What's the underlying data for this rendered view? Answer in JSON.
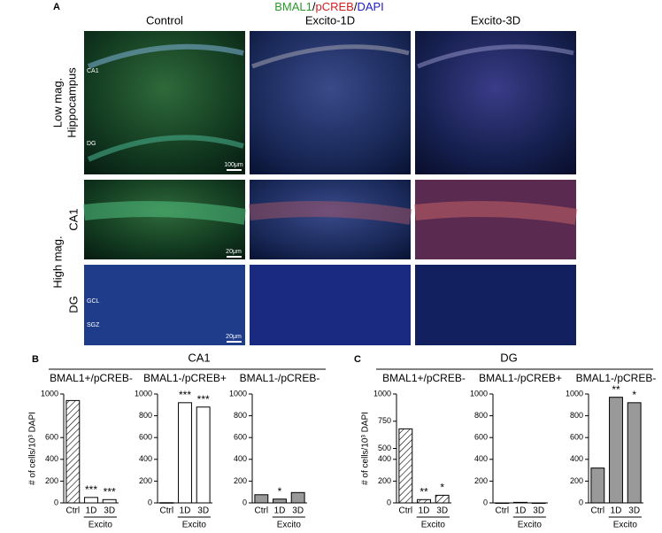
{
  "figure": {
    "panel_a": "A",
    "panel_b": "B",
    "panel_c": "C",
    "stain": [
      "BMAL1",
      "/",
      "pCREB",
      "/",
      "DAPI"
    ],
    "columns": [
      "Control",
      "Excito-1D",
      "Excito-3D"
    ],
    "row_low": [
      "Low mag.",
      "Hippocampus"
    ],
    "row_high": "High mag.",
    "row_ca1": "CA1",
    "row_dg": "DG",
    "inner_low": [
      "CA1",
      "DG"
    ],
    "inner_dg": [
      "GCL",
      "SGZ"
    ],
    "scale_bars": [
      "100μm",
      "20μm",
      "20μm"
    ],
    "group_b": "CA1",
    "group_c": "DG"
  },
  "chart_data": [
    {
      "type": "bar",
      "title": "BMAL1+/pCREB-",
      "y_label": "# of cells/10³ DAPI",
      "categories": [
        "Ctrl",
        "1D",
        "3D"
      ],
      "x_group": "Excito",
      "values": [
        940,
        50,
        30
      ],
      "significance": [
        null,
        "***",
        "***"
      ],
      "color": "#ffffff",
      "hatched": [
        true,
        false,
        false
      ],
      "ylim": [
        0,
        1000
      ],
      "yticks": [
        0,
        200,
        400,
        600,
        1000
      ]
    },
    {
      "type": "bar",
      "title": "BMAL1-/pCREB+",
      "categories": [
        "Ctrl",
        "1D",
        "3D"
      ],
      "x_group": "Excito",
      "values": [
        2,
        920,
        880
      ],
      "significance": [
        null,
        "***",
        "***"
      ],
      "color": "#ffffff",
      "hatched": [
        false,
        false,
        false
      ],
      "ylim": [
        0,
        1000
      ],
      "yticks": [
        0,
        200,
        400,
        600,
        800,
        1000
      ]
    },
    {
      "type": "bar",
      "title": "BMAL1-/pCREB-",
      "categories": [
        "Ctrl",
        "1D",
        "3D"
      ],
      "x_group": "Excito",
      "values": [
        75,
        35,
        95
      ],
      "significance": [
        null,
        "*",
        null
      ],
      "color": "#999999",
      "hatched": [
        false,
        false,
        false
      ],
      "ylim": [
        0,
        1000
      ],
      "yticks": [
        0,
        200,
        400,
        600,
        800,
        1000
      ]
    },
    {
      "type": "bar",
      "title": "BMAL1+/pCREB-",
      "y_label": "# of cells/10³ DAPI",
      "categories": [
        "Ctrl",
        "1D",
        "3D"
      ],
      "x_group": "Excito",
      "values": [
        680,
        30,
        70
      ],
      "significance": [
        null,
        "**",
        "*"
      ],
      "color": "#ffffff",
      "hatched": [
        true,
        true,
        true
      ],
      "ylim": [
        0,
        1000
      ],
      "yticks": [
        0,
        200,
        400,
        500,
        750,
        1000
      ]
    },
    {
      "type": "bar",
      "title": "BMAL1-/pCREB+",
      "categories": [
        "Ctrl",
        "1D",
        "3D"
      ],
      "x_group": "Excito",
      "values": [
        0,
        5,
        0
      ],
      "significance": [
        null,
        null,
        null
      ],
      "color": "#ffffff",
      "hatched": [
        false,
        false,
        false
      ],
      "ylim": [
        0,
        1000
      ],
      "yticks": [
        0,
        200,
        400,
        600,
        800,
        1000
      ]
    },
    {
      "type": "bar",
      "title": "BMAL1-/pCREB-",
      "categories": [
        "Ctrl",
        "1D",
        "3D"
      ],
      "x_group": "Excito",
      "values": [
        320,
        970,
        920
      ],
      "significance": [
        null,
        "**",
        "*"
      ],
      "color": "#999999",
      "hatched": [
        false,
        false,
        false
      ],
      "ylim": [
        0,
        1000
      ],
      "yticks": [
        0,
        200,
        400,
        600,
        800,
        1000
      ]
    }
  ]
}
